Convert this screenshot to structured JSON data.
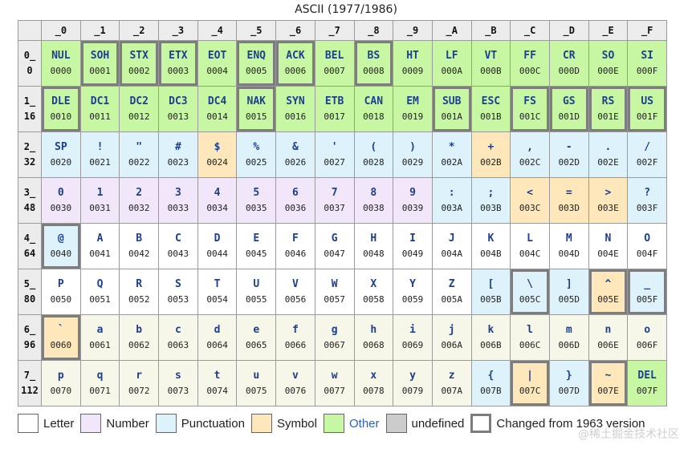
{
  "title": "ASCII (1977/1986)",
  "columns": [
    "_0",
    "_1",
    "_2",
    "_3",
    "_4",
    "_5",
    "_6",
    "_7",
    "_8",
    "_9",
    "_A",
    "_B",
    "_C",
    "_D",
    "_E",
    "_F"
  ],
  "rows": [
    {
      "head": "0_",
      "dec": "0",
      "cells": [
        {
          "g": "NUL",
          "c": "0000",
          "t": "other",
          "x": false
        },
        {
          "g": "SOH",
          "c": "0001",
          "t": "other",
          "x": true
        },
        {
          "g": "STX",
          "c": "0002",
          "t": "other",
          "x": true
        },
        {
          "g": "ETX",
          "c": "0003",
          "t": "other",
          "x": true
        },
        {
          "g": "EOT",
          "c": "0004",
          "t": "other",
          "x": false
        },
        {
          "g": "ENQ",
          "c": "0005",
          "t": "other",
          "x": true
        },
        {
          "g": "ACK",
          "c": "0006",
          "t": "other",
          "x": true
        },
        {
          "g": "BEL",
          "c": "0007",
          "t": "other",
          "x": false
        },
        {
          "g": "BS",
          "c": "0008",
          "t": "other",
          "x": true
        },
        {
          "g": "HT",
          "c": "0009",
          "t": "other",
          "x": false
        },
        {
          "g": "LF",
          "c": "000A",
          "t": "other",
          "x": false
        },
        {
          "g": "VT",
          "c": "000B",
          "t": "other",
          "x": false
        },
        {
          "g": "FF",
          "c": "000C",
          "t": "other",
          "x": false
        },
        {
          "g": "CR",
          "c": "000D",
          "t": "other",
          "x": false
        },
        {
          "g": "SO",
          "c": "000E",
          "t": "other",
          "x": false
        },
        {
          "g": "SI",
          "c": "000F",
          "t": "other",
          "x": false
        }
      ]
    },
    {
      "head": "1_",
      "dec": "16",
      "cells": [
        {
          "g": "DLE",
          "c": "0010",
          "t": "other",
          "x": true
        },
        {
          "g": "DC1",
          "c": "0011",
          "t": "other",
          "x": false
        },
        {
          "g": "DC2",
          "c": "0012",
          "t": "other",
          "x": false
        },
        {
          "g": "DC3",
          "c": "0013",
          "t": "other",
          "x": false
        },
        {
          "g": "DC4",
          "c": "0014",
          "t": "other",
          "x": false
        },
        {
          "g": "NAK",
          "c": "0015",
          "t": "other",
          "x": true
        },
        {
          "g": "SYN",
          "c": "0016",
          "t": "other",
          "x": false
        },
        {
          "g": "ETB",
          "c": "0017",
          "t": "other",
          "x": false
        },
        {
          "g": "CAN",
          "c": "0018",
          "t": "other",
          "x": false
        },
        {
          "g": "EM",
          "c": "0019",
          "t": "other",
          "x": false
        },
        {
          "g": "SUB",
          "c": "001A",
          "t": "other",
          "x": true
        },
        {
          "g": "ESC",
          "c": "001B",
          "t": "other",
          "x": false
        },
        {
          "g": "FS",
          "c": "001C",
          "t": "other",
          "x": true
        },
        {
          "g": "GS",
          "c": "001D",
          "t": "other",
          "x": true
        },
        {
          "g": "RS",
          "c": "001E",
          "t": "other",
          "x": true
        },
        {
          "g": "US",
          "c": "001F",
          "t": "other",
          "x": true
        }
      ]
    },
    {
      "head": "2_",
      "dec": "32",
      "cells": [
        {
          "g": "SP",
          "c": "0020",
          "t": "punct",
          "x": false
        },
        {
          "g": "!",
          "c": "0021",
          "t": "punct",
          "x": false
        },
        {
          "g": "\"",
          "c": "0022",
          "t": "punct",
          "x": false
        },
        {
          "g": "#",
          "c": "0023",
          "t": "punct",
          "x": false
        },
        {
          "g": "$",
          "c": "0024",
          "t": "symbol",
          "x": false
        },
        {
          "g": "%",
          "c": "0025",
          "t": "punct",
          "x": false
        },
        {
          "g": "&",
          "c": "0026",
          "t": "punct",
          "x": false
        },
        {
          "g": "'",
          "c": "0027",
          "t": "punct",
          "x": false
        },
        {
          "g": "(",
          "c": "0028",
          "t": "punct",
          "x": false
        },
        {
          "g": ")",
          "c": "0029",
          "t": "punct",
          "x": false
        },
        {
          "g": "*",
          "c": "002A",
          "t": "punct",
          "x": false
        },
        {
          "g": "+",
          "c": "002B",
          "t": "symbol",
          "x": false
        },
        {
          "g": ",",
          "c": "002C",
          "t": "punct",
          "x": false
        },
        {
          "g": "-",
          "c": "002D",
          "t": "punct",
          "x": false
        },
        {
          "g": ".",
          "c": "002E",
          "t": "punct",
          "x": false
        },
        {
          "g": "/",
          "c": "002F",
          "t": "punct",
          "x": false
        }
      ]
    },
    {
      "head": "3_",
      "dec": "48",
      "cells": [
        {
          "g": "0",
          "c": "0030",
          "t": "number",
          "x": false
        },
        {
          "g": "1",
          "c": "0031",
          "t": "number",
          "x": false
        },
        {
          "g": "2",
          "c": "0032",
          "t": "number",
          "x": false
        },
        {
          "g": "3",
          "c": "0033",
          "t": "number",
          "x": false
        },
        {
          "g": "4",
          "c": "0034",
          "t": "number",
          "x": false
        },
        {
          "g": "5",
          "c": "0035",
          "t": "number",
          "x": false
        },
        {
          "g": "6",
          "c": "0036",
          "t": "number",
          "x": false
        },
        {
          "g": "7",
          "c": "0037",
          "t": "number",
          "x": false
        },
        {
          "g": "8",
          "c": "0038",
          "t": "number",
          "x": false
        },
        {
          "g": "9",
          "c": "0039",
          "t": "number",
          "x": false
        },
        {
          "g": ":",
          "c": "003A",
          "t": "punct",
          "x": false
        },
        {
          "g": ";",
          "c": "003B",
          "t": "punct",
          "x": false
        },
        {
          "g": "<",
          "c": "003C",
          "t": "symbol",
          "x": false
        },
        {
          "g": "=",
          "c": "003D",
          "t": "symbol",
          "x": false
        },
        {
          "g": ">",
          "c": "003E",
          "t": "symbol",
          "x": false
        },
        {
          "g": "?",
          "c": "003F",
          "t": "punct",
          "x": false
        }
      ]
    },
    {
      "head": "4_",
      "dec": "64",
      "cells": [
        {
          "g": "@",
          "c": "0040",
          "t": "punct",
          "x": true
        },
        {
          "g": "A",
          "c": "0041",
          "t": "letter",
          "x": false
        },
        {
          "g": "B",
          "c": "0042",
          "t": "letter",
          "x": false
        },
        {
          "g": "C",
          "c": "0043",
          "t": "letter",
          "x": false
        },
        {
          "g": "D",
          "c": "0044",
          "t": "letter",
          "x": false
        },
        {
          "g": "E",
          "c": "0045",
          "t": "letter",
          "x": false
        },
        {
          "g": "F",
          "c": "0046",
          "t": "letter",
          "x": false
        },
        {
          "g": "G",
          "c": "0047",
          "t": "letter",
          "x": false
        },
        {
          "g": "H",
          "c": "0048",
          "t": "letter",
          "x": false
        },
        {
          "g": "I",
          "c": "0049",
          "t": "letter",
          "x": false
        },
        {
          "g": "J",
          "c": "004A",
          "t": "letter",
          "x": false
        },
        {
          "g": "K",
          "c": "004B",
          "t": "letter",
          "x": false
        },
        {
          "g": "L",
          "c": "004C",
          "t": "letter",
          "x": false
        },
        {
          "g": "M",
          "c": "004D",
          "t": "letter",
          "x": false
        },
        {
          "g": "N",
          "c": "004E",
          "t": "letter",
          "x": false
        },
        {
          "g": "O",
          "c": "004F",
          "t": "letter",
          "x": false
        }
      ]
    },
    {
      "head": "5_",
      "dec": "80",
      "cells": [
        {
          "g": "P",
          "c": "0050",
          "t": "letter",
          "x": false
        },
        {
          "g": "Q",
          "c": "0051",
          "t": "letter",
          "x": false
        },
        {
          "g": "R",
          "c": "0052",
          "t": "letter",
          "x": false
        },
        {
          "g": "S",
          "c": "0053",
          "t": "letter",
          "x": false
        },
        {
          "g": "T",
          "c": "0054",
          "t": "letter",
          "x": false
        },
        {
          "g": "U",
          "c": "0055",
          "t": "letter",
          "x": false
        },
        {
          "g": "V",
          "c": "0056",
          "t": "letter",
          "x": false
        },
        {
          "g": "W",
          "c": "0057",
          "t": "letter",
          "x": false
        },
        {
          "g": "X",
          "c": "0058",
          "t": "letter",
          "x": false
        },
        {
          "g": "Y",
          "c": "0059",
          "t": "letter",
          "x": false
        },
        {
          "g": "Z",
          "c": "005A",
          "t": "letter",
          "x": false
        },
        {
          "g": "[",
          "c": "005B",
          "t": "punct",
          "x": false
        },
        {
          "g": "\\",
          "c": "005C",
          "t": "punct",
          "x": true
        },
        {
          "g": "]",
          "c": "005D",
          "t": "punct",
          "x": false
        },
        {
          "g": "^",
          "c": "005E",
          "t": "symbol",
          "x": true
        },
        {
          "g": "_",
          "c": "005F",
          "t": "punct",
          "x": true
        }
      ]
    },
    {
      "head": "6_",
      "dec": "96",
      "cells": [
        {
          "g": "`",
          "c": "0060",
          "t": "symbol",
          "x": true
        },
        {
          "g": "a",
          "c": "0061",
          "t": "letter-lower",
          "x": false
        },
        {
          "g": "b",
          "c": "0062",
          "t": "letter-lower",
          "x": false
        },
        {
          "g": "c",
          "c": "0063",
          "t": "letter-lower",
          "x": false
        },
        {
          "g": "d",
          "c": "0064",
          "t": "letter-lower",
          "x": false
        },
        {
          "g": "e",
          "c": "0065",
          "t": "letter-lower",
          "x": false
        },
        {
          "g": "f",
          "c": "0066",
          "t": "letter-lower",
          "x": false
        },
        {
          "g": "g",
          "c": "0067",
          "t": "letter-lower",
          "x": false
        },
        {
          "g": "h",
          "c": "0068",
          "t": "letter-lower",
          "x": false
        },
        {
          "g": "i",
          "c": "0069",
          "t": "letter-lower",
          "x": false
        },
        {
          "g": "j",
          "c": "006A",
          "t": "letter-lower",
          "x": false
        },
        {
          "g": "k",
          "c": "006B",
          "t": "letter-lower",
          "x": false
        },
        {
          "g": "l",
          "c": "006C",
          "t": "letter-lower",
          "x": false
        },
        {
          "g": "m",
          "c": "006D",
          "t": "letter-lower",
          "x": false
        },
        {
          "g": "n",
          "c": "006E",
          "t": "letter-lower",
          "x": false
        },
        {
          "g": "o",
          "c": "006F",
          "t": "letter-lower",
          "x": false
        }
      ]
    },
    {
      "head": "7_",
      "dec": "112",
      "cells": [
        {
          "g": "p",
          "c": "0070",
          "t": "letter-lower",
          "x": false
        },
        {
          "g": "q",
          "c": "0071",
          "t": "letter-lower",
          "x": false
        },
        {
          "g": "r",
          "c": "0072",
          "t": "letter-lower",
          "x": false
        },
        {
          "g": "s",
          "c": "0073",
          "t": "letter-lower",
          "x": false
        },
        {
          "g": "t",
          "c": "0074",
          "t": "letter-lower",
          "x": false
        },
        {
          "g": "u",
          "c": "0075",
          "t": "letter-lower",
          "x": false
        },
        {
          "g": "v",
          "c": "0076",
          "t": "letter-lower",
          "x": false
        },
        {
          "g": "w",
          "c": "0077",
          "t": "letter-lower",
          "x": false
        },
        {
          "g": "x",
          "c": "0078",
          "t": "letter-lower",
          "x": false
        },
        {
          "g": "y",
          "c": "0079",
          "t": "letter-lower",
          "x": false
        },
        {
          "g": "z",
          "c": "007A",
          "t": "letter-lower",
          "x": false
        },
        {
          "g": "{",
          "c": "007B",
          "t": "punct",
          "x": false
        },
        {
          "g": "|",
          "c": "007C",
          "t": "symbol",
          "x": true
        },
        {
          "g": "}",
          "c": "007D",
          "t": "punct",
          "x": false
        },
        {
          "g": "~",
          "c": "007E",
          "t": "symbol",
          "x": true
        },
        {
          "g": "DEL",
          "c": "007F",
          "t": "other",
          "x": false
        }
      ]
    }
  ],
  "legend": [
    {
      "key": "letter",
      "label": "Letter",
      "color": "#ffffff"
    },
    {
      "key": "number",
      "label": "Number",
      "color": "#f2e6fa"
    },
    {
      "key": "punct",
      "label": "Punctuation",
      "color": "#ddf2fb"
    },
    {
      "key": "symbol",
      "label": "Symbol",
      "color": "#fde7bb"
    },
    {
      "key": "other",
      "label": "Other",
      "color": "#c8f7a4"
    },
    {
      "key": "undef",
      "label": "undefined",
      "color": "#cccccc"
    },
    {
      "key": "changed",
      "label": "Changed from 1963 version",
      "color": "#ffffff"
    }
  ],
  "watermark": "@稀土掘金技术社区"
}
